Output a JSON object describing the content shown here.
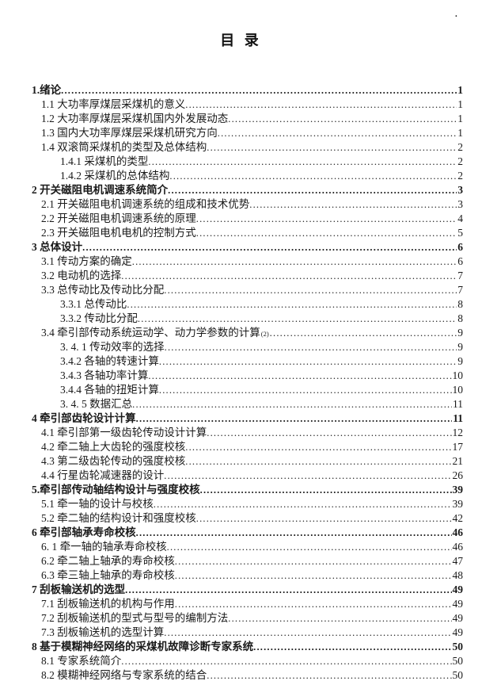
{
  "page": {
    "title": "目 录",
    "stray_mark": "."
  },
  "toc": {
    "entries": [
      {
        "level": 1,
        "bold": true,
        "label": "1.绪论",
        "page": "1"
      },
      {
        "level": 2,
        "bold": false,
        "label": "1.1 大功率厚煤层采煤机的意义",
        "page": "1"
      },
      {
        "level": 2,
        "bold": false,
        "label": "1.2 大功率厚煤层采煤机国内外发展动态",
        "page": "1"
      },
      {
        "level": 2,
        "bold": false,
        "label": "1.3 国内大功率厚煤层采煤机研究方向",
        "page": "1"
      },
      {
        "level": 2,
        "bold": false,
        "label": "1.4 双滚筒采煤机的类型及总体结构",
        "page": "2"
      },
      {
        "level": 3,
        "bold": false,
        "label": "1.4.1 采煤机的类型",
        "page": "2"
      },
      {
        "level": 3,
        "bold": false,
        "label": "1.4.2 采煤机的总体结构",
        "page": "2"
      },
      {
        "level": 1,
        "bold": true,
        "label": "2 开关磁阻电机调速系统简介",
        "page": "3"
      },
      {
        "level": 2,
        "bold": false,
        "label": "2.1 开关磁阻电机调速系统的组成和技术优势",
        "page": "3"
      },
      {
        "level": 2,
        "bold": false,
        "label": "2.2 开关磁阻电机调速系统的原理",
        "page": "4"
      },
      {
        "level": 2,
        "bold": false,
        "label": "2.3 开关磁阻电机电机的控制方式",
        "page": "5"
      },
      {
        "level": 1,
        "bold": true,
        "label": "3 总体设计",
        "page": "6"
      },
      {
        "level": 2,
        "bold": false,
        "label": "3.1 传动方案的确定",
        "page": "6"
      },
      {
        "level": 2,
        "bold": false,
        "label": "3.2 电动机的选择",
        "page": "7"
      },
      {
        "level": 2,
        "bold": false,
        "label": "3.3 总传动比及传动比分配",
        "page": "7"
      },
      {
        "level": 3,
        "bold": false,
        "label": "3.3.1 总传动比",
        "page": "8"
      },
      {
        "level": 3,
        "bold": false,
        "label": "3.3.2 传动比分配",
        "page": "8"
      },
      {
        "level": 2,
        "bold": false,
        "label": "3.4 牵引部传动系统运动学、动力学参数的计算",
        "sup": "(2)",
        "page": "9"
      },
      {
        "level": 3,
        "bold": false,
        "label": "3. 4. 1 传动效率的选择",
        "page": "9"
      },
      {
        "level": 3,
        "bold": false,
        "label": "3.4.2 各轴的转速计算",
        "page": "9"
      },
      {
        "level": 3,
        "bold": false,
        "label": "3.4.3 各轴功率计算",
        "page": "10"
      },
      {
        "level": 3,
        "bold": false,
        "label": "3.4.4 各轴的扭矩计算",
        "page": "10"
      },
      {
        "level": 3,
        "bold": false,
        "label": "3. 4. 5 数据汇总",
        "page": "11"
      },
      {
        "level": 1,
        "bold": true,
        "label": "4 牵引部齿轮设计计算",
        "page": "11"
      },
      {
        "level": 2,
        "bold": false,
        "label": "4.1 牵引部第一级齿轮传动设计计算",
        "page": "12"
      },
      {
        "level": 2,
        "bold": false,
        "label": "4.2 牵二轴上大齿轮的强度校核",
        "page": "17"
      },
      {
        "level": 2,
        "bold": false,
        "label": "4.3 第二级齿轮传动的强度校核",
        "page": "21"
      },
      {
        "level": 2,
        "bold": false,
        "label": "4.4 行星齿轮减速器的设计",
        "page": "26"
      },
      {
        "level": 1,
        "bold": true,
        "label": "5.牵引部传动轴结构设计与强度校核",
        "page": "39"
      },
      {
        "level": 2,
        "bold": false,
        "label": "5.1 牵一轴的设计与校核",
        "page": "39"
      },
      {
        "level": 2,
        "bold": false,
        "label": "5.2 牵二轴的结构设计和强度校核",
        "page": "42"
      },
      {
        "level": 1,
        "bold": true,
        "label": "6 牵引部轴承寿命校核",
        "page": "46"
      },
      {
        "level": 2,
        "bold": false,
        "label": "6. 1 牵一轴的轴承寿命校核",
        "page": "46"
      },
      {
        "level": 2,
        "bold": false,
        "label": "6.2 牵二轴上轴承的寿命校核",
        "page": "47"
      },
      {
        "level": 2,
        "bold": false,
        "label": "6.3 牵三轴上轴承的寿命校核",
        "page": "48"
      },
      {
        "level": 1,
        "bold": true,
        "label": "7 刮板输送机的选型",
        "page": "49"
      },
      {
        "level": 2,
        "bold": false,
        "label": "7.1 刮板输送机的机构与作用",
        "page": "49"
      },
      {
        "level": 2,
        "bold": false,
        "label": "7.2 刮板输送机的型式与型号的编制方法",
        "page": "49"
      },
      {
        "level": 2,
        "bold": false,
        "label": "7.3 刮板输送机的选型计算",
        "page": "49"
      },
      {
        "level": 1,
        "bold": true,
        "label": "8 基于模糊神经网络的采煤机故障诊断专家系统",
        "page": "50"
      },
      {
        "level": 2,
        "bold": false,
        "label": "8.1 专家系统简介",
        "page": "50"
      },
      {
        "level": 2,
        "bold": false,
        "label": "8.2 模糊神经网络与专家系统的结合",
        "page": "50"
      }
    ]
  }
}
